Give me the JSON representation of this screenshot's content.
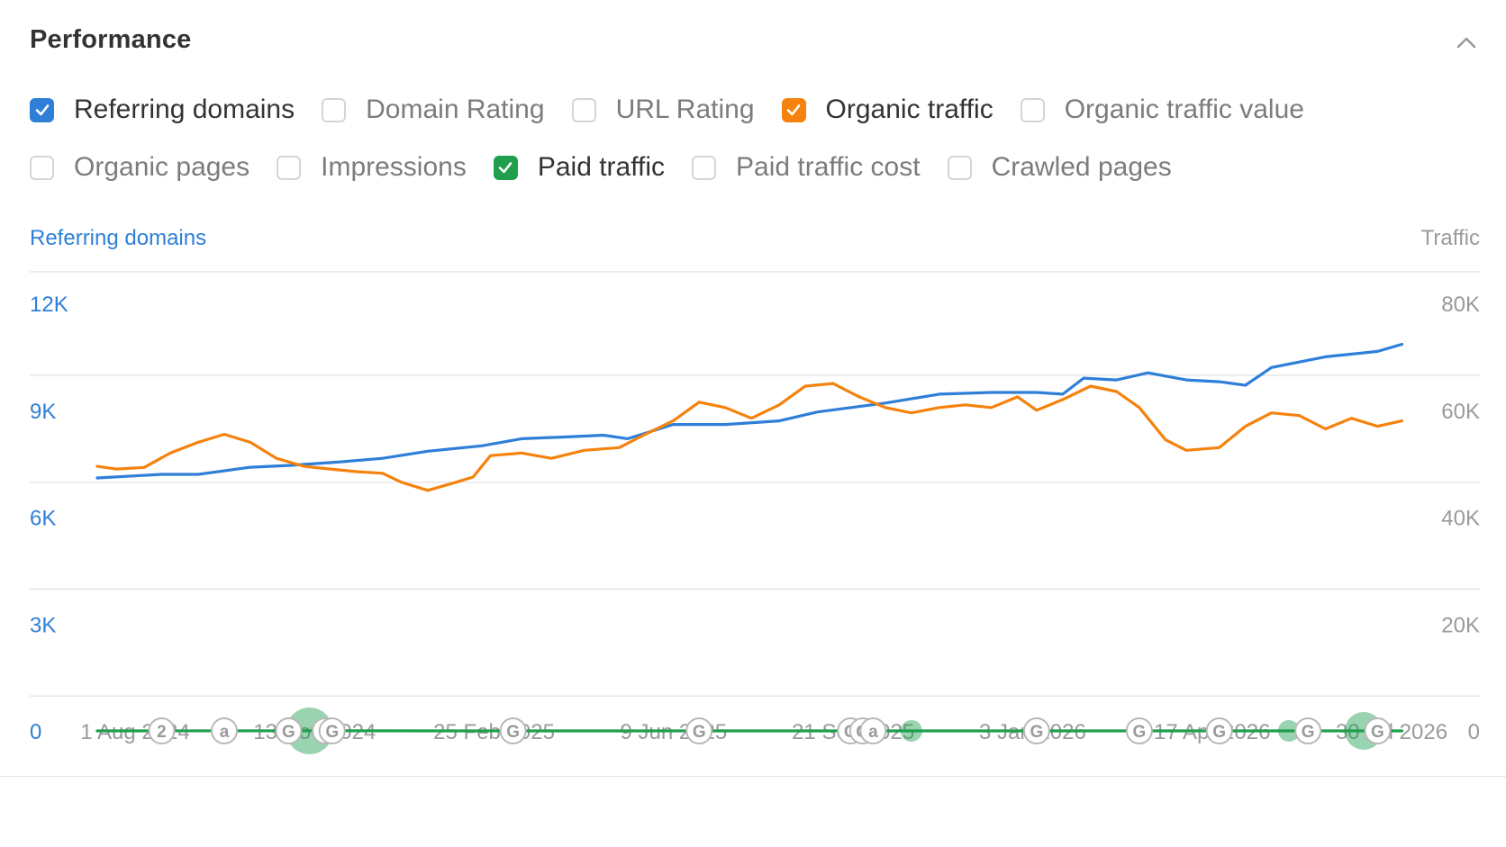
{
  "header": {
    "title": "Performance"
  },
  "metrics": [
    [
      {
        "label": "Referring domains",
        "checked": true,
        "color": "#2f7fd8"
      },
      {
        "label": "Domain Rating",
        "checked": false
      },
      {
        "label": "URL Rating",
        "checked": false
      },
      {
        "label": "Organic traffic",
        "checked": true,
        "color": "#f5820d"
      },
      {
        "label": "Organic traffic value",
        "checked": false
      }
    ],
    [
      {
        "label": "Organic pages",
        "checked": false
      },
      {
        "label": "Impressions",
        "checked": false
      },
      {
        "label": "Paid traffic",
        "checked": true,
        "color": "#1f9e4d"
      },
      {
        "label": "Paid traffic cost",
        "checked": false
      },
      {
        "label": "Crawled pages",
        "checked": false
      }
    ]
  ],
  "colors": {
    "referring_domains": "#2f7fd8",
    "organic_traffic": "#f5820d",
    "paid_traffic": "#1f9e4d",
    "grid": "#e6e6e6",
    "muted_text": "#9a9a9a"
  },
  "chart_data": {
    "type": "line",
    "left_axis_label": "Referring domains",
    "right_axis_label": "Traffic",
    "left_ticks": [
      "0",
      "3K",
      "6K",
      "9K",
      "12K"
    ],
    "right_ticks": [
      "0",
      "20K",
      "40K",
      "60K",
      "80K"
    ],
    "left_ylim": [
      0,
      12000
    ],
    "right_ylim": [
      0,
      80000
    ],
    "x_ticks": [
      "1 Aug 2024",
      "13 Nov 2024",
      "25 Feb 2025",
      "9 Jun 2025",
      "21 Sep 2025",
      "3 Jan 2026",
      "17 Apr 2026",
      "30 Jul 2026"
    ],
    "x_start": "2024-07-14",
    "x_end": "2026-08-10",
    "grid": true,
    "series": [
      {
        "name": "Referring domains",
        "axis": "left",
        "color": "#2f7fd8",
        "points": [
          [
            "2024-07-14",
            7100
          ],
          [
            "2024-08-20",
            7200
          ],
          [
            "2024-09-10",
            7200
          ],
          [
            "2024-10-10",
            7400
          ],
          [
            "2024-11-01",
            7450
          ],
          [
            "2024-12-01",
            7550
          ],
          [
            "2024-12-25",
            7650
          ],
          [
            "2025-01-20",
            7850
          ],
          [
            "2025-02-20",
            8000
          ],
          [
            "2025-03-15",
            8200
          ],
          [
            "2025-04-10",
            8250
          ],
          [
            "2025-05-01",
            8300
          ],
          [
            "2025-05-15",
            8200
          ],
          [
            "2025-06-10",
            8600
          ],
          [
            "2025-07-10",
            8600
          ],
          [
            "2025-08-10",
            8700
          ],
          [
            "2025-09-01",
            8950
          ],
          [
            "2025-10-10",
            9200
          ],
          [
            "2025-11-10",
            9450
          ],
          [
            "2025-12-10",
            9500
          ],
          [
            "2026-01-05",
            9500
          ],
          [
            "2026-01-20",
            9450
          ],
          [
            "2026-02-01",
            9900
          ],
          [
            "2026-02-20",
            9850
          ],
          [
            "2026-03-10",
            10050
          ],
          [
            "2026-04-01",
            9850
          ],
          [
            "2026-04-20",
            9800
          ],
          [
            "2026-05-05",
            9700
          ],
          [
            "2026-05-20",
            10200
          ],
          [
            "2026-06-20",
            10500
          ],
          [
            "2026-07-20",
            10650
          ],
          [
            "2026-08-03",
            10850
          ]
        ]
      },
      {
        "name": "Organic traffic",
        "axis": "right",
        "color": "#f5820d",
        "points": [
          [
            "2024-07-14",
            49500
          ],
          [
            "2024-07-25",
            49000
          ],
          [
            "2024-08-10",
            49300
          ],
          [
            "2024-08-25",
            52000
          ],
          [
            "2024-09-10",
            54000
          ],
          [
            "2024-09-25",
            55500
          ],
          [
            "2024-10-10",
            54000
          ],
          [
            "2024-10-25",
            51000
          ],
          [
            "2024-11-10",
            49500
          ],
          [
            "2024-11-25",
            49000
          ],
          [
            "2024-12-10",
            48500
          ],
          [
            "2024-12-25",
            48200
          ],
          [
            "2025-01-05",
            46500
          ],
          [
            "2025-01-20",
            45000
          ],
          [
            "2025-02-05",
            46500
          ],
          [
            "2025-02-15",
            47500
          ],
          [
            "2025-02-25",
            51500
          ],
          [
            "2025-03-15",
            52000
          ],
          [
            "2025-04-01",
            51000
          ],
          [
            "2025-04-20",
            52500
          ],
          [
            "2025-05-10",
            53000
          ],
          [
            "2025-05-25",
            55500
          ],
          [
            "2025-06-10",
            58000
          ],
          [
            "2025-06-25",
            61500
          ],
          [
            "2025-07-10",
            60500
          ],
          [
            "2025-07-25",
            58500
          ],
          [
            "2025-08-10",
            61000
          ],
          [
            "2025-08-25",
            64500
          ],
          [
            "2025-09-10",
            65000
          ],
          [
            "2025-09-25",
            62500
          ],
          [
            "2025-10-10",
            60500
          ],
          [
            "2025-10-25",
            59500
          ],
          [
            "2025-11-10",
            60500
          ],
          [
            "2025-11-25",
            61000
          ],
          [
            "2025-12-10",
            60500
          ],
          [
            "2025-12-25",
            62500
          ],
          [
            "2026-01-05",
            60000
          ],
          [
            "2026-01-20",
            62000
          ],
          [
            "2026-02-05",
            64500
          ],
          [
            "2026-02-20",
            63500
          ],
          [
            "2026-03-05",
            60500
          ],
          [
            "2026-03-20",
            54500
          ],
          [
            "2026-04-01",
            52500
          ],
          [
            "2026-04-20",
            53000
          ],
          [
            "2026-05-05",
            57000
          ],
          [
            "2026-05-20",
            59500
          ],
          [
            "2026-06-05",
            59000
          ],
          [
            "2026-06-20",
            56500
          ],
          [
            "2026-07-05",
            58500
          ],
          [
            "2026-07-20",
            57000
          ],
          [
            "2026-08-03",
            58000
          ]
        ]
      },
      {
        "name": "Paid traffic",
        "axis": "right",
        "color": "#1f9e4d",
        "points": [
          [
            "2024-07-14",
            0
          ],
          [
            "2024-12-01",
            20
          ],
          [
            "2025-02-01",
            0
          ],
          [
            "2025-06-01",
            0
          ],
          [
            "2025-10-01",
            0
          ],
          [
            "2026-02-01",
            0
          ],
          [
            "2026-06-01",
            0
          ],
          [
            "2026-08-03",
            0
          ]
        ]
      }
    ],
    "annotations": [
      {
        "date": "2024-08-20",
        "label": "2"
      },
      {
        "date": "2024-09-25",
        "label": "a"
      },
      {
        "date": "2024-11-01",
        "label": "G"
      },
      {
        "date": "2024-11-22",
        "label": "G"
      },
      {
        "date": "2024-11-26",
        "label": "G"
      },
      {
        "date": "2025-03-10",
        "label": "G"
      },
      {
        "date": "2025-06-25",
        "label": "G"
      },
      {
        "date": "2025-09-20",
        "label": "G"
      },
      {
        "date": "2025-09-27",
        "label": "G"
      },
      {
        "date": "2025-10-03",
        "label": "a"
      },
      {
        "date": "2026-01-05",
        "label": "G"
      },
      {
        "date": "2026-03-05",
        "label": "G"
      },
      {
        "date": "2026-04-20",
        "label": "G"
      },
      {
        "date": "2026-06-10",
        "label": "G"
      },
      {
        "date": "2026-07-20",
        "label": "G"
      }
    ],
    "bubbles": [
      {
        "date": "2024-11-13",
        "size": "large"
      },
      {
        "date": "2025-10-25",
        "size": "small"
      },
      {
        "date": "2026-05-30",
        "size": "small"
      },
      {
        "date": "2026-07-12",
        "size": "medium"
      }
    ]
  }
}
